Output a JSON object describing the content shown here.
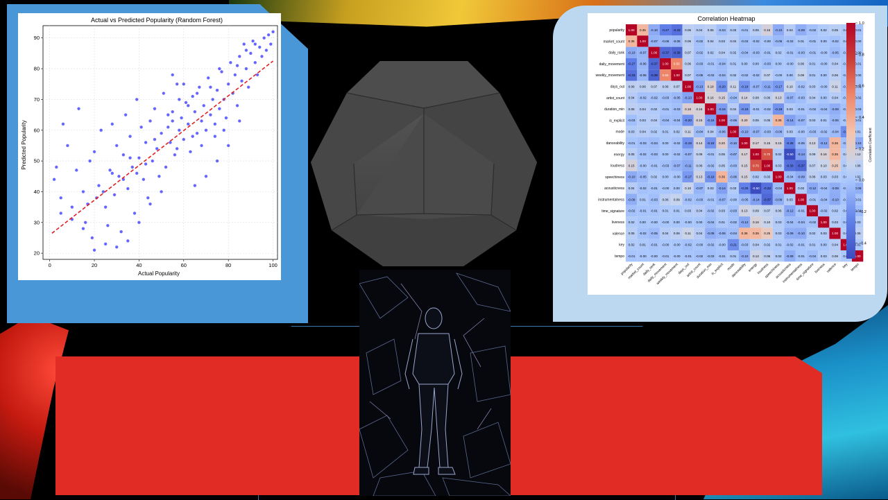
{
  "slide": {
    "background_color": "#000000",
    "accent_red": "#e12c25",
    "accent_blue": "#4a97d8",
    "accent_light_blue": "#bcd8f0"
  },
  "chart_data": [
    {
      "type": "scatter",
      "title": "Actual vs Predicted Popularity (Random Forest)",
      "xlabel": "Actual Popularity",
      "ylabel": "Predicted Popularity",
      "xlim": [
        -3,
        102
      ],
      "ylim": [
        18,
        94
      ],
      "xticks": [
        0,
        20,
        40,
        60,
        80,
        100
      ],
      "yticks": [
        20,
        30,
        40,
        50,
        60,
        70,
        80,
        90
      ],
      "grid": true,
      "point_color": "#3030ff",
      "trend_line": {
        "color": "#e02020",
        "style": "dashed",
        "x": [
          1,
          100
        ],
        "y": [
          26.5,
          82.5
        ]
      },
      "points": [
        [
          2,
          44
        ],
        [
          3,
          48
        ],
        [
          5,
          38
        ],
        [
          6,
          62
        ],
        [
          8,
          55
        ],
        [
          10,
          35
        ],
        [
          12,
          47
        ],
        [
          13,
          67
        ],
        [
          15,
          40
        ],
        [
          16,
          30
        ],
        [
          18,
          50
        ],
        [
          19,
          25
        ],
        [
          20,
          53
        ],
        [
          22,
          42
        ],
        [
          23,
          60
        ],
        [
          25,
          35
        ],
        [
          26,
          29
        ],
        [
          27,
          47
        ],
        [
          28,
          62
        ],
        [
          29,
          39
        ],
        [
          30,
          55
        ],
        [
          31,
          45
        ],
        [
          32,
          27
        ],
        [
          33,
          52
        ],
        [
          34,
          65
        ],
        [
          35,
          41
        ],
        [
          36,
          58
        ],
        [
          37,
          48
        ],
        [
          38,
          33
        ],
        [
          39,
          70
        ],
        [
          40,
          51
        ],
        [
          41,
          61
        ],
        [
          42,
          44
        ],
        [
          43,
          56
        ],
        [
          44,
          38
        ],
        [
          45,
          63
        ],
        [
          46,
          50
        ],
        [
          47,
          67
        ],
        [
          48,
          54
        ],
        [
          49,
          45
        ],
        [
          50,
          59
        ],
        [
          51,
          72
        ],
        [
          52,
          48
        ],
        [
          53,
          61
        ],
        [
          54,
          56
        ],
        [
          55,
          66
        ],
        [
          56,
          52
        ],
        [
          57,
          75
        ],
        [
          58,
          60
        ],
        [
          59,
          64
        ],
        [
          60,
          57
        ],
        [
          61,
          69
        ],
        [
          62,
          62
        ],
        [
          63,
          53
        ],
        [
          64,
          71
        ],
        [
          65,
          66
        ],
        [
          66,
          59
        ],
        [
          67,
          74
        ],
        [
          68,
          63
        ],
        [
          69,
          68
        ],
        [
          70,
          60
        ],
        [
          71,
          77
        ],
        [
          72,
          65
        ],
        [
          73,
          70
        ],
        [
          74,
          58
        ],
        [
          75,
          73
        ],
        [
          76,
          67
        ],
        [
          77,
          79
        ],
        [
          78,
          70
        ],
        [
          79,
          64
        ],
        [
          80,
          75
        ],
        [
          81,
          82
        ],
        [
          82,
          72
        ],
        [
          83,
          78
        ],
        [
          84,
          68
        ],
        [
          85,
          84
        ],
        [
          86,
          76
        ],
        [
          87,
          88
        ],
        [
          88,
          80
        ],
        [
          89,
          74
        ],
        [
          90,
          85
        ],
        [
          91,
          89
        ],
        [
          92,
          82
        ],
        [
          93,
          78
        ],
        [
          94,
          87
        ],
        [
          95,
          84
        ],
        [
          96,
          90
        ],
        [
          97,
          86
        ],
        [
          98,
          91
        ],
        [
          99,
          88
        ],
        [
          100,
          92
        ],
        [
          85,
          63
        ],
        [
          80,
          55
        ],
        [
          75,
          50
        ],
        [
          70,
          45
        ],
        [
          65,
          42
        ],
        [
          60,
          75
        ],
        [
          55,
          78
        ],
        [
          50,
          40
        ],
        [
          45,
          36
        ],
        [
          40,
          30
        ],
        [
          35,
          24
        ],
        [
          30,
          22
        ],
        [
          25,
          23
        ],
        [
          20,
          21
        ],
        [
          15,
          28
        ],
        [
          10,
          31
        ],
        [
          5,
          33
        ],
        [
          58,
          70
        ],
        [
          62,
          68
        ],
        [
          66,
          72
        ],
        [
          72,
          74
        ],
        [
          76,
          80
        ],
        [
          84,
          81
        ],
        [
          88,
          86
        ],
        [
          92,
          88
        ],
        [
          64,
          58
        ],
        [
          68,
          55
        ],
        [
          74,
          62
        ],
        [
          78,
          60
        ],
        [
          55,
          63
        ],
        [
          57,
          54
        ],
        [
          53,
          65
        ],
        [
          47,
          57
        ],
        [
          43,
          49
        ],
        [
          39,
          46
        ],
        [
          36,
          51
        ],
        [
          33,
          44
        ],
        [
          28,
          46
        ],
        [
          24,
          40
        ],
        [
          21,
          38
        ],
        [
          17,
          36
        ]
      ]
    },
    {
      "type": "heatmap",
      "title": "Correlation Heatmap",
      "colorbar_label": "Correlation Coefficient",
      "colorbar_ticks": [
        "1.0",
        "0.8",
        "0.6",
        "0.4",
        "0.2",
        "0.0",
        "−0.2",
        "−0.4"
      ],
      "labels": [
        "popularity",
        "market_count",
        "daily_rank",
        "daily_movement",
        "weekly_movement",
        "days_out",
        "artist_count",
        "duration_min",
        "is_explicit",
        "mode",
        "danceability",
        "energy",
        "loudness",
        "speechiness",
        "acousticness",
        "instrumentalness",
        "time_signature",
        "liveness",
        "valence",
        "key",
        "tempo"
      ],
      "values": [
        [
          "1.00",
          "0.35",
          "-0.10",
          "-0.27",
          "-0.33",
          "0.06",
          "0.04",
          "0.06",
          "-0.03",
          "0.03",
          "-0.01",
          "0.05",
          "0.15",
          "-0.10",
          "0.04",
          "-0.09",
          "-0.02",
          "0.02",
          "0.05",
          "0.02",
          "-0.01"
        ],
        [
          "0.35",
          "1.00",
          "-0.07",
          "-0.06",
          "-0.06",
          "0.06",
          "-0.02",
          "0.04",
          "0.03",
          "0.04",
          "-0.03",
          "-0.02",
          "-0.00",
          "-0.05",
          "-0.02",
          "0.01",
          "-0.01",
          "0.00",
          "-0.02",
          "0.01",
          "-0.00"
        ],
        [
          "-0.10",
          "-0.07",
          "1.00",
          "-0.37",
          "-0.39",
          "0.07",
          "-0.02",
          "0.02",
          "0.04",
          "0.02",
          "-0.04",
          "-0.03",
          "-0.01",
          "0.02",
          "-0.01",
          "-0.03",
          "-0.01",
          "-0.00",
          "-0.05",
          "-0.01",
          "-0.00"
        ],
        [
          "-0.27",
          "-0.06",
          "-0.37",
          "1.00",
          "0.55",
          "0.06",
          "-0.03",
          "-0.01",
          "-0.04",
          "0.01",
          "0.00",
          "0.00",
          "-0.03",
          "0.00",
          "-0.00",
          "0.06",
          "0.01",
          "-0.00",
          "0.04",
          "-0.00",
          "-0.01"
        ],
        [
          "-0.33",
          "-0.06",
          "-0.39",
          "0.55",
          "1.00",
          "0.07",
          "-0.05",
          "-0.03",
          "-0.04",
          "0.02",
          "-0.02",
          "-0.02",
          "0.07",
          "-0.00",
          "0.00",
          "0.09",
          "0.01",
          "0.00",
          "0.06",
          "-0.00",
          "-0.00"
        ],
        [
          "0.06",
          "0.06",
          "0.07",
          "0.06",
          "0.07",
          "1.00",
          "-0.13",
          "0.18",
          "-0.20",
          "0.11",
          "-0.19",
          "-0.07",
          "-0.11",
          "-0.17",
          "0.10",
          "-0.02",
          "0.03",
          "-0.00",
          "0.11",
          "-0.02",
          "-0.01"
        ],
        [
          "0.04",
          "-0.02",
          "-0.02",
          "-0.03",
          "-0.05",
          "-0.13",
          "1.00",
          "0.16",
          "0.15",
          "-0.04",
          "0.14",
          "0.08",
          "0.06",
          "0.13",
          "-0.07",
          "-0.03",
          "0.04",
          "0.00",
          "0.04",
          "-0.00",
          "-0.02"
        ],
        [
          "0.06",
          "0.04",
          "0.02",
          "-0.01",
          "-0.03",
          "0.18",
          "0.16",
          "1.00",
          "-0.16",
          "0.04",
          "-0.19",
          "-0.01",
          "-0.02",
          "-0.19",
          "0.03",
          "-0.01",
          "-0.02",
          "-0.04",
          "-0.09",
          "-0.02",
          "-0.03"
        ],
        [
          "-0.03",
          "0.03",
          "0.04",
          "-0.04",
          "-0.04",
          "-0.20",
          "0.15",
          "-0.16",
          "1.00",
          "-0.06",
          "0.20",
          "0.05",
          "0.05",
          "0.36",
          "-0.14",
          "-0.07",
          "0.03",
          "0.01",
          "-0.06",
          "-0.00",
          "-0.01"
        ],
        [
          "0.03",
          "0.04",
          "0.02",
          "0.01",
          "0.02",
          "0.11",
          "-0.04",
          "0.04",
          "-0.06",
          "1.00",
          "-0.10",
          "-0.07",
          "-0.03",
          "-0.06",
          "0.03",
          "-0.00",
          "-0.03",
          "-0.02",
          "-0.04",
          "-0.21",
          "0.01"
        ],
        [
          "-0.01",
          "-0.03",
          "-0.04",
          "0.00",
          "-0.02",
          "-0.19",
          "0.14",
          "-0.19",
          "0.20",
          "-0.10",
          "1.00",
          "0.17",
          "0.15",
          "0.15",
          "-0.25",
          "-0.05",
          "0.13",
          "-0.12",
          "0.36",
          "-0.03",
          "-0.10"
        ],
        [
          "0.05",
          "-0.02",
          "-0.03",
          "0.00",
          "-0.02",
          "-0.07",
          "0.08",
          "-0.01",
          "0.05",
          "-0.07",
          "0.17",
          "1.00",
          "0.70",
          "0.02",
          "-0.50",
          "-0.14",
          "0.09",
          "0.16",
          "0.35",
          "0.04",
          "0.12"
        ],
        [
          "0.15",
          "-0.00",
          "-0.01",
          "-0.03",
          "-0.07",
          "-0.11",
          "0.06",
          "-0.02",
          "0.05",
          "-0.03",
          "0.15",
          "0.70",
          "1.00",
          "0.03",
          "-0.33",
          "-0.37",
          "0.07",
          "0.10",
          "0.25",
          "0.02",
          "0.06"
        ],
        [
          "-0.10",
          "-0.05",
          "0.02",
          "0.00",
          "-0.00",
          "-0.17",
          "0.13",
          "-0.19",
          "0.36",
          "-0.06",
          "0.15",
          "0.02",
          "0.03",
          "1.00",
          "-0.04",
          "-0.09",
          "0.06",
          "0.03",
          "0.03",
          "0.01",
          "0.02"
        ],
        [
          "0.04",
          "-0.02",
          "-0.01",
          "-0.00",
          "0.00",
          "0.10",
          "-0.07",
          "0.03",
          "-0.14",
          "0.03",
          "-0.25",
          "-0.50",
          "-0.33",
          "-0.04",
          "1.00",
          "0.03",
          "-0.12",
          "-0.04",
          "-0.09",
          "-0.02",
          "-0.09"
        ],
        [
          "-0.09",
          "0.01",
          "-0.03",
          "0.06",
          "0.09",
          "-0.02",
          "-0.03",
          "-0.01",
          "-0.07",
          "-0.00",
          "-0.05",
          "-0.14",
          "-0.37",
          "-0.09",
          "0.03",
          "1.00",
          "-0.01",
          "-0.04",
          "-0.10",
          "-0.01",
          "-0.01"
        ],
        [
          "-0.02",
          "-0.01",
          "-0.01",
          "0.01",
          "0.01",
          "0.03",
          "0.04",
          "-0.02",
          "0.03",
          "-0.03",
          "0.13",
          "0.09",
          "0.07",
          "0.06",
          "-0.12",
          "-0.01",
          "1.00",
          "-0.02",
          "0.02",
          "0.01",
          "-0.04"
        ],
        [
          "0.02",
          "0.00",
          "-0.00",
          "-0.00",
          "0.00",
          "-0.00",
          "0.00",
          "-0.04",
          "0.01",
          "-0.02",
          "-0.12",
          "0.16",
          "0.10",
          "0.03",
          "-0.04",
          "-0.04",
          "-0.02",
          "1.00",
          "0.03",
          "0.00",
          "0.03"
        ],
        [
          "0.05",
          "-0.02",
          "-0.05",
          "0.04",
          "0.06",
          "0.11",
          "0.04",
          "-0.09",
          "-0.06",
          "-0.04",
          "0.36",
          "0.35",
          "0.25",
          "0.03",
          "-0.09",
          "-0.10",
          "0.02",
          "0.03",
          "1.00",
          "0.04",
          "0.06"
        ],
        [
          "0.02",
          "0.01",
          "-0.01",
          "-0.00",
          "-0.00",
          "-0.02",
          "-0.00",
          "-0.02",
          "-0.00",
          "-0.21",
          "-0.03",
          "0.04",
          "0.02",
          "0.01",
          "-0.02",
          "-0.01",
          "0.01",
          "0.00",
          "0.04",
          "1.00",
          "0.01"
        ],
        [
          "-0.01",
          "-0.00",
          "-0.00",
          "-0.01",
          "-0.00",
          "-0.01",
          "-0.02",
          "-0.03",
          "-0.01",
          "0.01",
          "-0.10",
          "0.12",
          "0.06",
          "0.02",
          "-0.09",
          "-0.01",
          "-0.04",
          "0.03",
          "0.06",
          "0.01",
          "1.00"
        ]
      ]
    }
  ]
}
